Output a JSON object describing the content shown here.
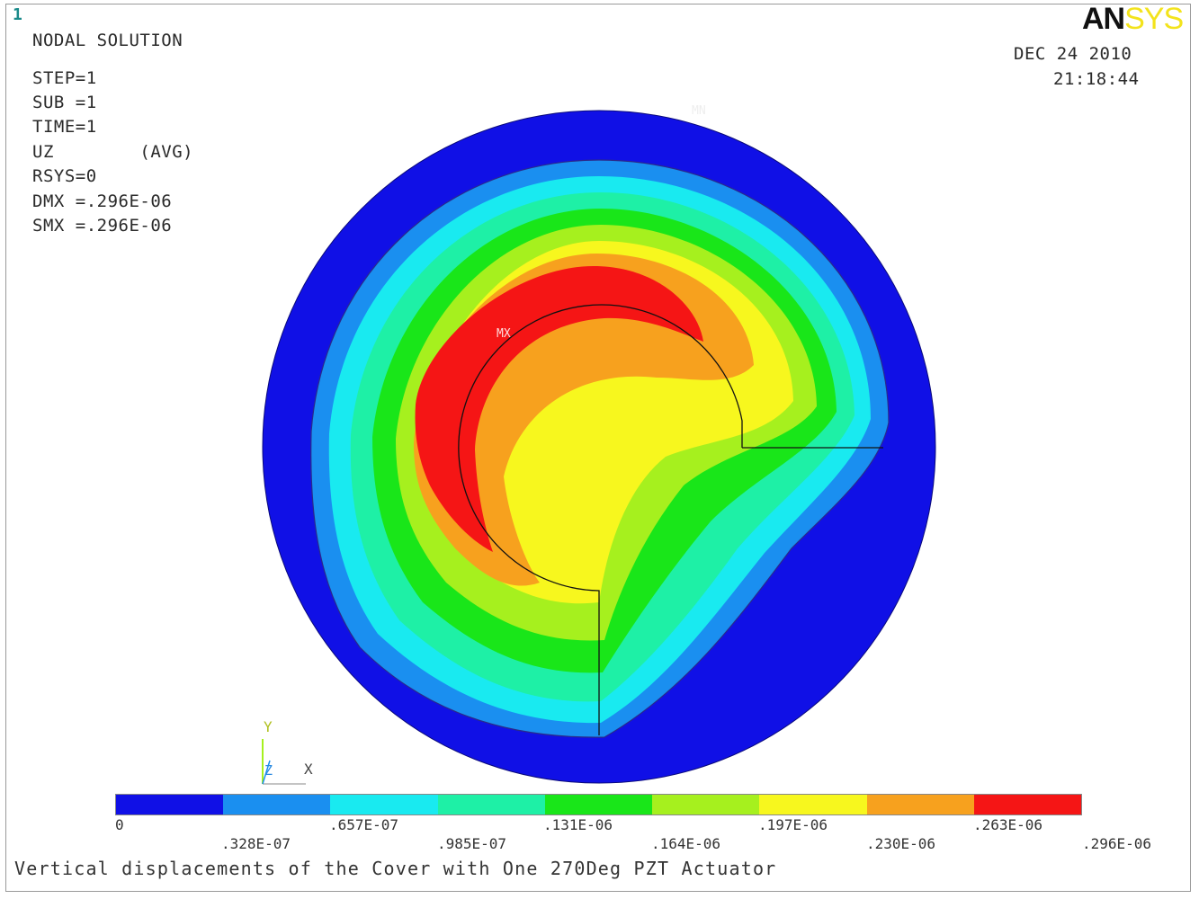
{
  "window_number": "1",
  "logo": {
    "part1": "AN",
    "part2": "SYS"
  },
  "solution": {
    "title": "NODAL SOLUTION",
    "lines": [
      "STEP=1",
      "SUB =1",
      "TIME=1",
      "UZ        (AVG)",
      "RSYS=0",
      "DMX =.296E-06",
      "SMX =.296E-06"
    ]
  },
  "date": "DEC 24 2010",
  "time": "21:18:44",
  "markers": {
    "min": "MN",
    "max": "MX"
  },
  "triad": {
    "y": "Y",
    "z": "Z",
    "x": "X"
  },
  "legend": {
    "colors": [
      "#1010e6",
      "#1a8ff0",
      "#19eaf0",
      "#1ef0a6",
      "#19e619",
      "#a6f01e",
      "#f7f71e",
      "#f7a11e",
      "#f51515"
    ],
    "labels_top": [
      "0",
      ".657E-07",
      ".131E-06",
      ".197E-06",
      ".263E-06"
    ],
    "labels_bottom": [
      ".328E-07",
      ".985E-07",
      ".164E-06",
      ".230E-06",
      ".296E-06"
    ]
  },
  "caption": "Vertical displacements of the Cover with One 270Deg PZT Actuator"
}
